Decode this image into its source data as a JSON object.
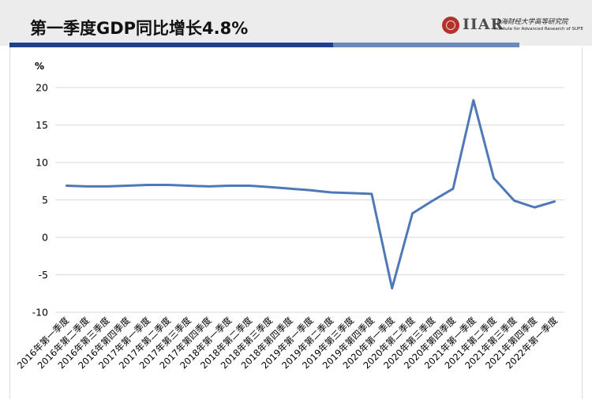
{
  "header": {
    "title": "第一季度GDP同比增长4.8%",
    "logo_letters": "IIAR",
    "logo_cn": "上海财经大学高等研究院",
    "logo_en": "Institute for Advanced Research of SUFE"
  },
  "colors": {
    "line": "#4f78b8",
    "bar_dark": "#1f3f8a",
    "bar_light": "#6c8ab7",
    "grid": "#d9d9d9",
    "seal": "#b2332b"
  },
  "chart_data": {
    "type": "line",
    "unit_label": "%",
    "ylim": [
      -10,
      20
    ],
    "yticks": [
      20,
      15,
      10,
      5,
      0,
      -5,
      -10
    ],
    "grid": true,
    "categories": [
      "2016年第一季度",
      "2016年第二季度",
      "2016年第三季度",
      "2016年第四季度",
      "2017年第一季度",
      "2017年第二季度",
      "2017年第三季度",
      "2017年第四季度",
      "2018年第一季度",
      "2018年第二季度",
      "2018年第三季度",
      "2018年第四季度",
      "2019年第一季度",
      "2019年第二季度",
      "2019年第三季度",
      "2019年第四季度",
      "2020年第一季度",
      "2020年第二季度",
      "2020年第三季度",
      "2020年第四季度",
      "2021年第一季度",
      "2021年第二季度",
      "2021年第三季度",
      "2021年第四季度",
      "2022年第一季度"
    ],
    "series": [
      {
        "values": [
          6.9,
          6.8,
          6.8,
          6.9,
          7.0,
          7.0,
          6.9,
          6.8,
          6.9,
          6.9,
          6.7,
          6.5,
          6.3,
          6.0,
          5.9,
          5.8,
          -6.8,
          3.2,
          4.9,
          6.5,
          18.3,
          7.9,
          4.9,
          4.0,
          4.8
        ]
      }
    ]
  }
}
